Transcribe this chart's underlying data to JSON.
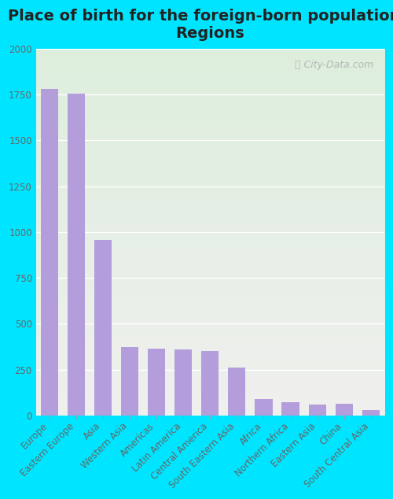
{
  "title": "Place of birth for the foreign-born population -\nRegions",
  "categories": [
    "Europe",
    "Eastern Europe",
    "Asia",
    "Western Asia",
    "Americas",
    "Latin America",
    "Central America",
    "South Eastern Asia",
    "Africa",
    "Northern Africa",
    "Eastern Asia",
    "China",
    "South Central Asia"
  ],
  "values": [
    1780,
    1757,
    955,
    375,
    365,
    362,
    352,
    263,
    88,
    72,
    58,
    63,
    28
  ],
  "bar_color": "#b39ddb",
  "background_outer": "#00e5ff",
  "background_inner_top": "#f0f0ee",
  "background_inner_bottom": "#ddeedd",
  "grid_color": "#ffffff",
  "ylim": [
    0,
    2000
  ],
  "yticks": [
    0,
    250,
    500,
    750,
    1000,
    1250,
    1500,
    1750,
    2000
  ],
  "watermark": "ⓘ City-Data.com",
  "title_fontsize": 14,
  "tick_fontsize": 8.5,
  "bar_width": 0.65,
  "figsize": [
    5.0,
    6.34
  ],
  "dpi": 100
}
